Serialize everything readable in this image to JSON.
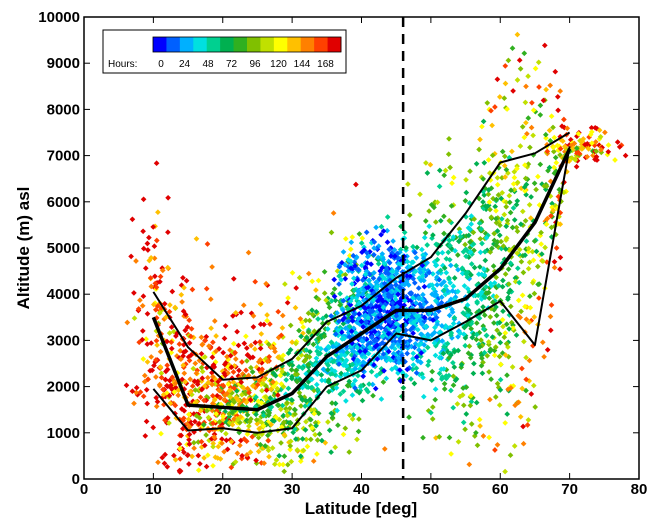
{
  "chart_data": {
    "type": "scatter",
    "title": "",
    "xlabel": "Latitude [deg]",
    "ylabel": "Altitude (m) asl",
    "xlim": [
      0,
      80
    ],
    "ylim": [
      0,
      10000
    ],
    "x_ticks": [
      "0",
      "10",
      "20",
      "30",
      "40",
      "50",
      "60",
      "70",
      "80"
    ],
    "y_ticks": [
      "0",
      "1000",
      "2000",
      "3000",
      "4000",
      "5000",
      "6000",
      "7000",
      "8000",
      "9000",
      "10000"
    ],
    "grid": false,
    "reference_line": {
      "x": 46,
      "style": "dashed"
    },
    "colorbar": {
      "title": "Hours:",
      "tick_labels": [
        "0",
        "24",
        "48",
        "72",
        "96",
        "120",
        "144",
        "168"
      ],
      "range": [
        0,
        192
      ],
      "colors": [
        "#0000ff",
        "#0060ff",
        "#00b0ff",
        "#00e0e0",
        "#00d090",
        "#00b050",
        "#30b020",
        "#80c000",
        "#c0e000",
        "#ffff00",
        "#ffc000",
        "#ff8000",
        "#ff4000",
        "#e00000"
      ]
    },
    "median_line": {
      "x": [
        10,
        15,
        20,
        25,
        30,
        35,
        40,
        45,
        50,
        55,
        60,
        65,
        70
      ],
      "y": [
        3500,
        1600,
        1550,
        1500,
        1850,
        2650,
        3150,
        3650,
        3650,
        3900,
        4550,
        5550,
        7150
      ]
    },
    "upper_quartile_line": {
      "x": [
        10,
        15,
        20,
        25,
        30,
        35,
        40,
        45,
        50,
        55,
        60,
        65,
        70
      ],
      "y": [
        4050,
        2850,
        2150,
        2200,
        2600,
        3400,
        3750,
        4350,
        4800,
        5750,
        6850,
        7050,
        7500
      ]
    },
    "lower_quartile_line": {
      "x": [
        10,
        15,
        20,
        25,
        30,
        35,
        40,
        45,
        50,
        55,
        60,
        65,
        70
      ],
      "y": [
        1950,
        1050,
        1100,
        1000,
        1100,
        2000,
        2350,
        3150,
        3000,
        3400,
        3850,
        2900,
        7200
      ]
    }
  }
}
